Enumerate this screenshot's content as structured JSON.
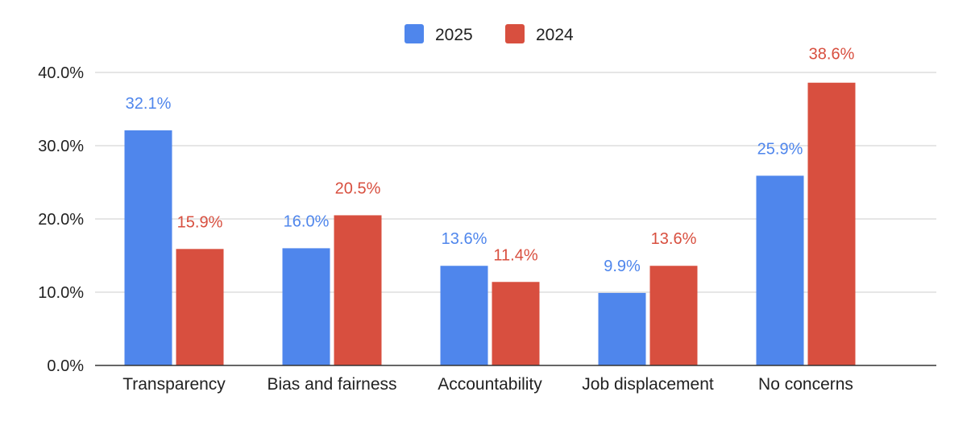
{
  "chart_data": {
    "type": "bar",
    "title": "",
    "xlabel": "",
    "ylabel": "",
    "categories": [
      "Transparency",
      "Bias and fairness",
      "Accountability",
      "Job displacement",
      "No concerns"
    ],
    "series": [
      {
        "name": "2025",
        "color": "#4f86ec",
        "values": [
          32.1,
          16.0,
          13.6,
          9.9,
          25.9
        ],
        "labels": [
          "32.1%",
          "16.0%",
          "13.6%",
          "9.9%",
          "25.9%"
        ]
      },
      {
        "name": "2024",
        "color": "#d84f3f",
        "values": [
          15.9,
          20.5,
          11.4,
          13.6,
          38.6
        ],
        "labels": [
          "15.9%",
          "20.5%",
          "11.4%",
          "13.6%",
          "38.6%"
        ]
      }
    ],
    "ylim": [
      0,
      40
    ],
    "yticks": [
      0,
      10,
      20,
      30,
      40
    ],
    "ytick_labels": [
      "0.0%",
      "10.0%",
      "20.0%",
      "30.0%",
      "40.0%"
    ],
    "grid": true,
    "legend_position": "top-center"
  }
}
